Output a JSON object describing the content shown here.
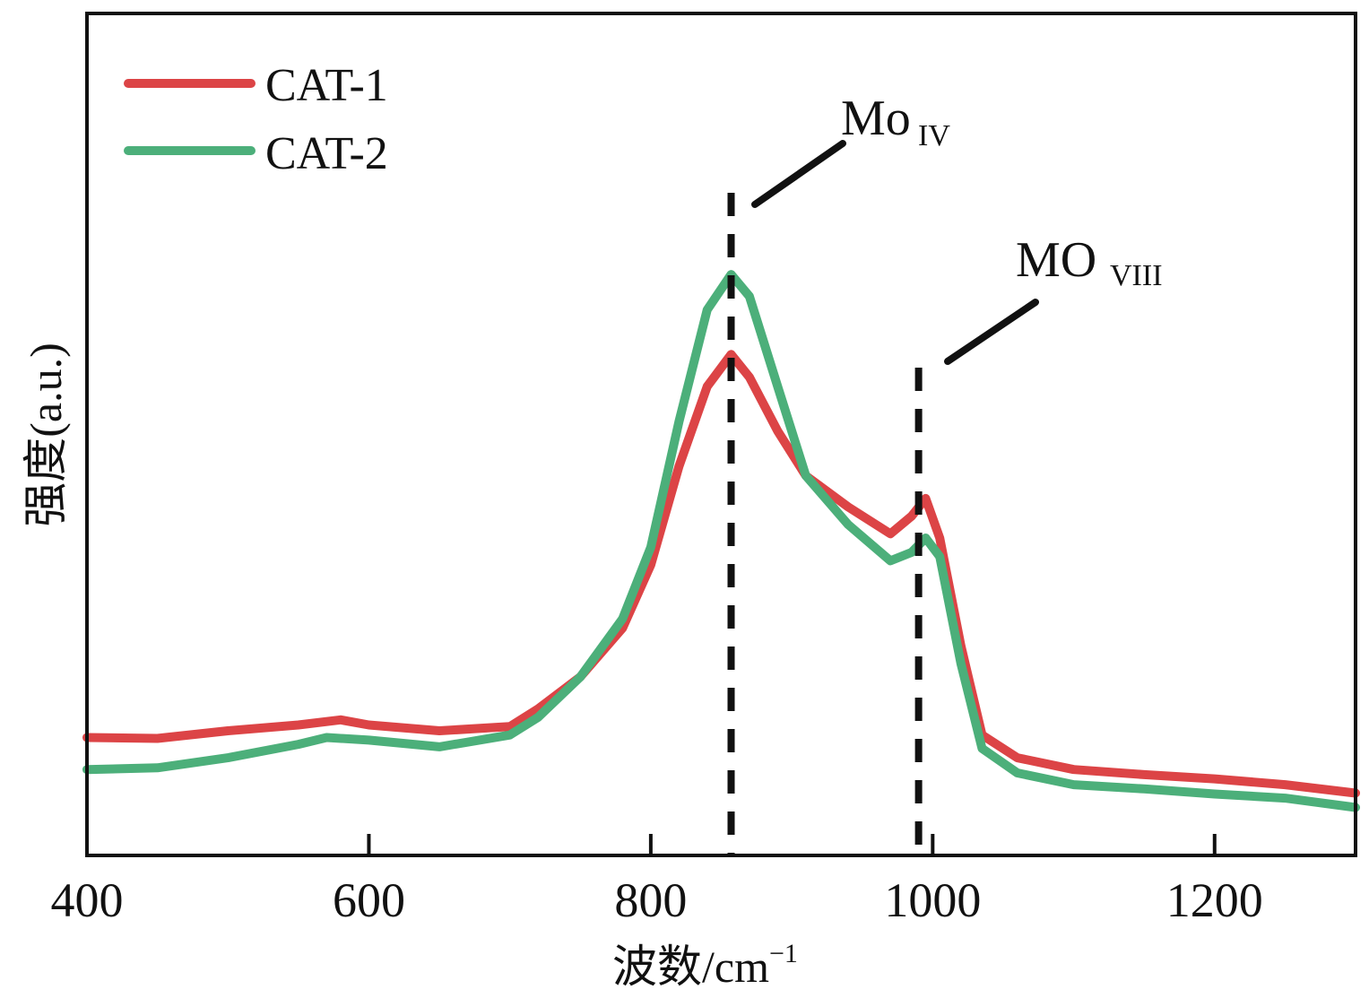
{
  "chart_data": {
    "type": "line",
    "title": "",
    "xlabel": "波数/cm⁻¹",
    "xlabel_main": "波数/cm",
    "xlabel_sup": "−1",
    "ylabel": "强度(a.u.)",
    "xlim": [
      400,
      1300
    ],
    "ylim": [
      0,
      100
    ],
    "grid": false,
    "yticks_shown": false,
    "xticks": [
      400,
      600,
      800,
      1000,
      1200
    ],
    "xtick_labels": [
      "400",
      "600",
      "800",
      "1000",
      "1200"
    ],
    "legend": {
      "placement": "top-left",
      "entries": [
        "CAT-1",
        "CAT-2"
      ]
    },
    "series": [
      {
        "name": "CAT-1",
        "color": "#dc4446",
        "x": [
          400,
          450,
          500,
          550,
          580,
          600,
          650,
          700,
          720,
          750,
          780,
          800,
          820,
          840,
          857,
          870,
          890,
          910,
          940,
          970,
          985,
          995,
          1005,
          1020,
          1035,
          1060,
          1100,
          1150,
          1200,
          1250,
          1300
        ],
        "y": [
          14.0,
          13.9,
          14.8,
          15.5,
          16.1,
          15.5,
          14.8,
          15.3,
          17.4,
          21.2,
          27.0,
          34.5,
          46.2,
          55.7,
          59.5,
          56.8,
          50.4,
          45.1,
          41.4,
          38.2,
          40.3,
          42.4,
          37.7,
          24.9,
          14.3,
          11.6,
          10.2,
          9.6,
          9.1,
          8.4,
          7.4
        ]
      },
      {
        "name": "CAT-2",
        "color": "#4caf7a",
        "x": [
          400,
          450,
          500,
          550,
          570,
          600,
          650,
          700,
          720,
          750,
          780,
          800,
          820,
          840,
          857,
          870,
          890,
          910,
          940,
          970,
          985,
          995,
          1005,
          1020,
          1035,
          1060,
          1100,
          1150,
          1200,
          1250,
          1300
        ],
        "y": [
          10.2,
          10.4,
          11.6,
          13.2,
          14.0,
          13.7,
          12.9,
          14.3,
          16.4,
          21.2,
          28.1,
          36.6,
          51.5,
          64.8,
          69.0,
          66.4,
          55.7,
          45.1,
          39.3,
          35.0,
          36.0,
          37.7,
          35.5,
          22.8,
          12.7,
          9.8,
          8.4,
          7.9,
          7.3,
          6.8,
          5.7
        ]
      }
    ],
    "annotations": [
      {
        "label": "Mo",
        "subscript": "IV",
        "x": 857,
        "line": "dashed-vertical"
      },
      {
        "label": "MO",
        "subscript": "VIII",
        "x": 990,
        "line": "dashed-vertical"
      }
    ]
  }
}
